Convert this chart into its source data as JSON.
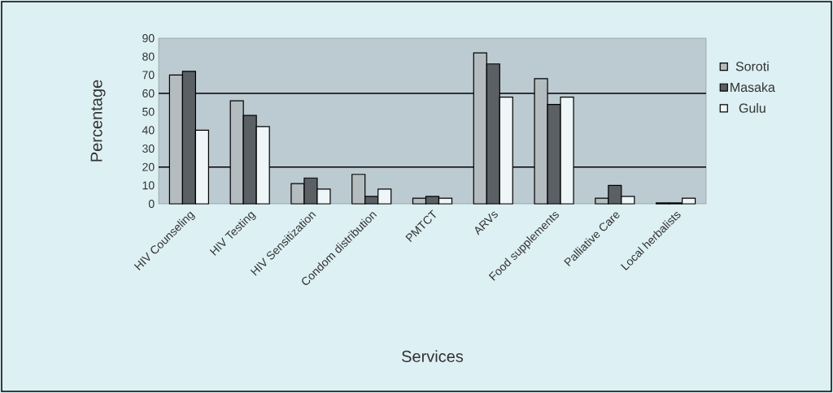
{
  "chart_data": {
    "type": "bar",
    "xlabel": "Services",
    "ylabel": "Percentage",
    "categories": [
      "HIV Counseling",
      "HIV Testing",
      "HIV Sensitization",
      "Condom distribution",
      "PMTCT",
      "ARVs",
      "Food supplements",
      "Palliative Care",
      "Local herbalists"
    ],
    "series": [
      {
        "name": "Soroti",
        "color": "#b4bcc0",
        "values": [
          70,
          56,
          11,
          16,
          3,
          82,
          68,
          3,
          0.5
        ]
      },
      {
        "name": "Masaka",
        "color": "#5a6064",
        "values": [
          72,
          48,
          14,
          4,
          4,
          76,
          54,
          10,
          0.5
        ]
      },
      {
        "name": "Gulu",
        "color": "#eef6f8",
        "values": [
          40,
          42,
          8,
          8,
          3,
          58,
          58,
          4,
          3
        ]
      }
    ],
    "ylim": [
      0,
      90
    ],
    "yticks": [
      0,
      10,
      20,
      30,
      40,
      50,
      60,
      70,
      80,
      90
    ],
    "ref_lines": [
      {
        "axis": "y",
        "value": 60,
        "color": "#000000"
      },
      {
        "axis": "y",
        "value": 20,
        "color": "#000000"
      }
    ],
    "legend": "right",
    "grid": false
  }
}
